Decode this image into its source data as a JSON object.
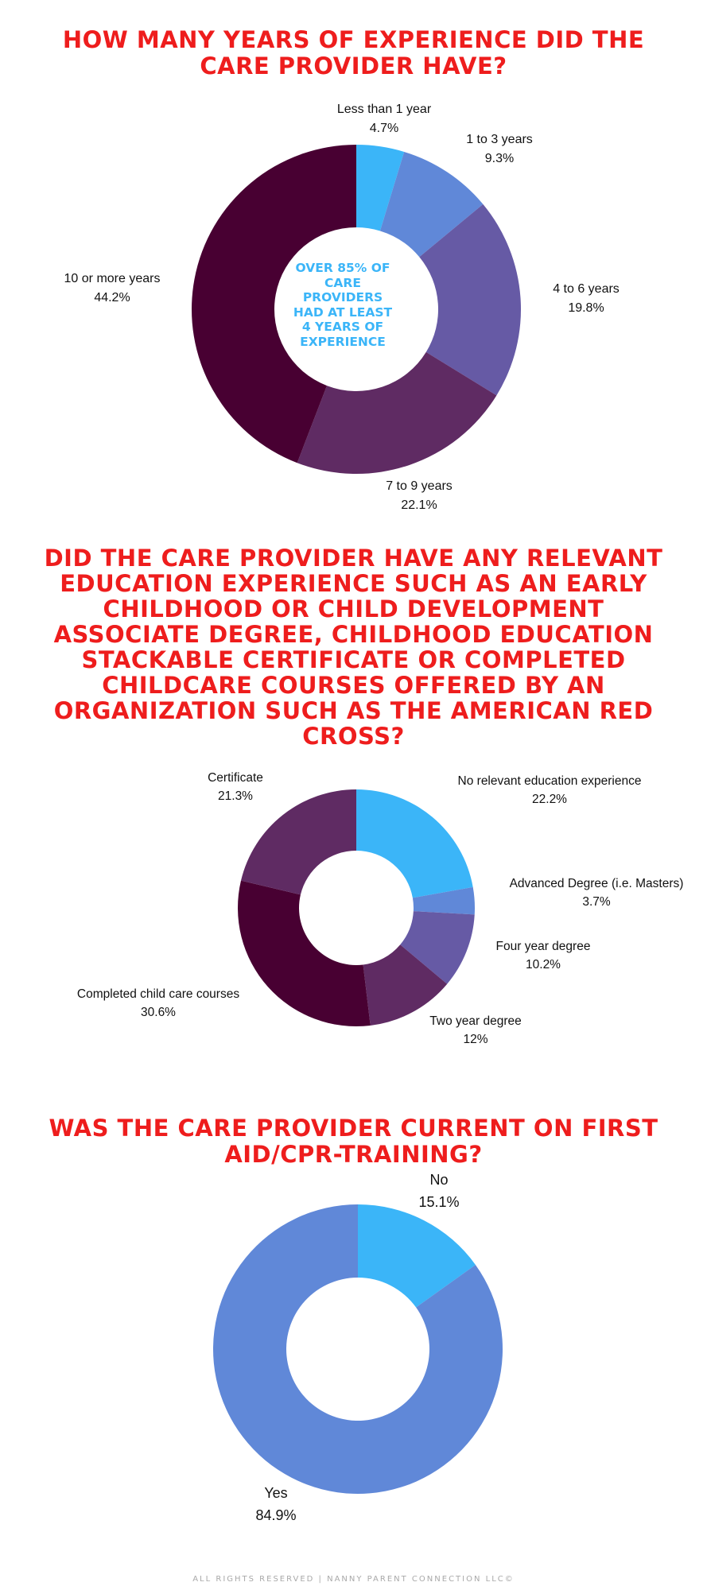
{
  "chart_data": [
    {
      "type": "pie",
      "title": "How many years of experience did the care provider have?",
      "center_text": "Over 85% of care providers had at least 4 years of experience",
      "hole": true,
      "slices": [
        {
          "label": "Less than 1 year",
          "value": 4.7,
          "display": "4.7%",
          "color": "#3bb5f8"
        },
        {
          "label": "1 to 3 years",
          "value": 9.3,
          "display": "9.3%",
          "color": "#6088d8"
        },
        {
          "label": "4 to 6 years",
          "value": 19.8,
          "display": "19.8%",
          "color": "#665aa5"
        },
        {
          "label": "7 to 9 years",
          "value": 22.1,
          "display": "22.1%",
          "color": "#5f2b63"
        },
        {
          "label": "10 or more years",
          "value": 44.2,
          "display": "44.2%",
          "color": "#480032"
        }
      ]
    },
    {
      "type": "pie",
      "title": "Did the care provider have any relevant education experience such as an early childhood or child development associate degree, childhood education stackable certificate or completed childcare courses offered by an organization such as the American Red Cross?",
      "hole": true,
      "slices": [
        {
          "label": "No relevant education experience",
          "value": 22.2,
          "display": "22.2%",
          "color": "#3bb5f8"
        },
        {
          "label": "Advanced Degree (i.e. Masters)",
          "value": 3.7,
          "display": "3.7%",
          "color": "#6088d8"
        },
        {
          "label": "Four year degree",
          "value": 10.2,
          "display": "10.2%",
          "color": "#665aa5"
        },
        {
          "label": "Two year degree",
          "value": 12,
          "display": "12%",
          "color": "#5f2b63"
        },
        {
          "label": "Completed child care courses",
          "value": 30.6,
          "display": "30.6%",
          "color": "#480032"
        },
        {
          "label": "Certificate",
          "value": 21.3,
          "display": "21.3%",
          "color": "#5f2b63"
        }
      ]
    },
    {
      "type": "pie",
      "title": "Was the care provider current on first aid/CPR-training?",
      "hole": true,
      "slices": [
        {
          "label": "No",
          "value": 15.1,
          "display": "15.1%",
          "color": "#3bb5f8"
        },
        {
          "label": "Yes",
          "value": 84.9,
          "display": "84.9%",
          "color": "#6088d8"
        }
      ]
    }
  ],
  "footer": "All rights reserved | Nanny Parent Connection LLC©"
}
